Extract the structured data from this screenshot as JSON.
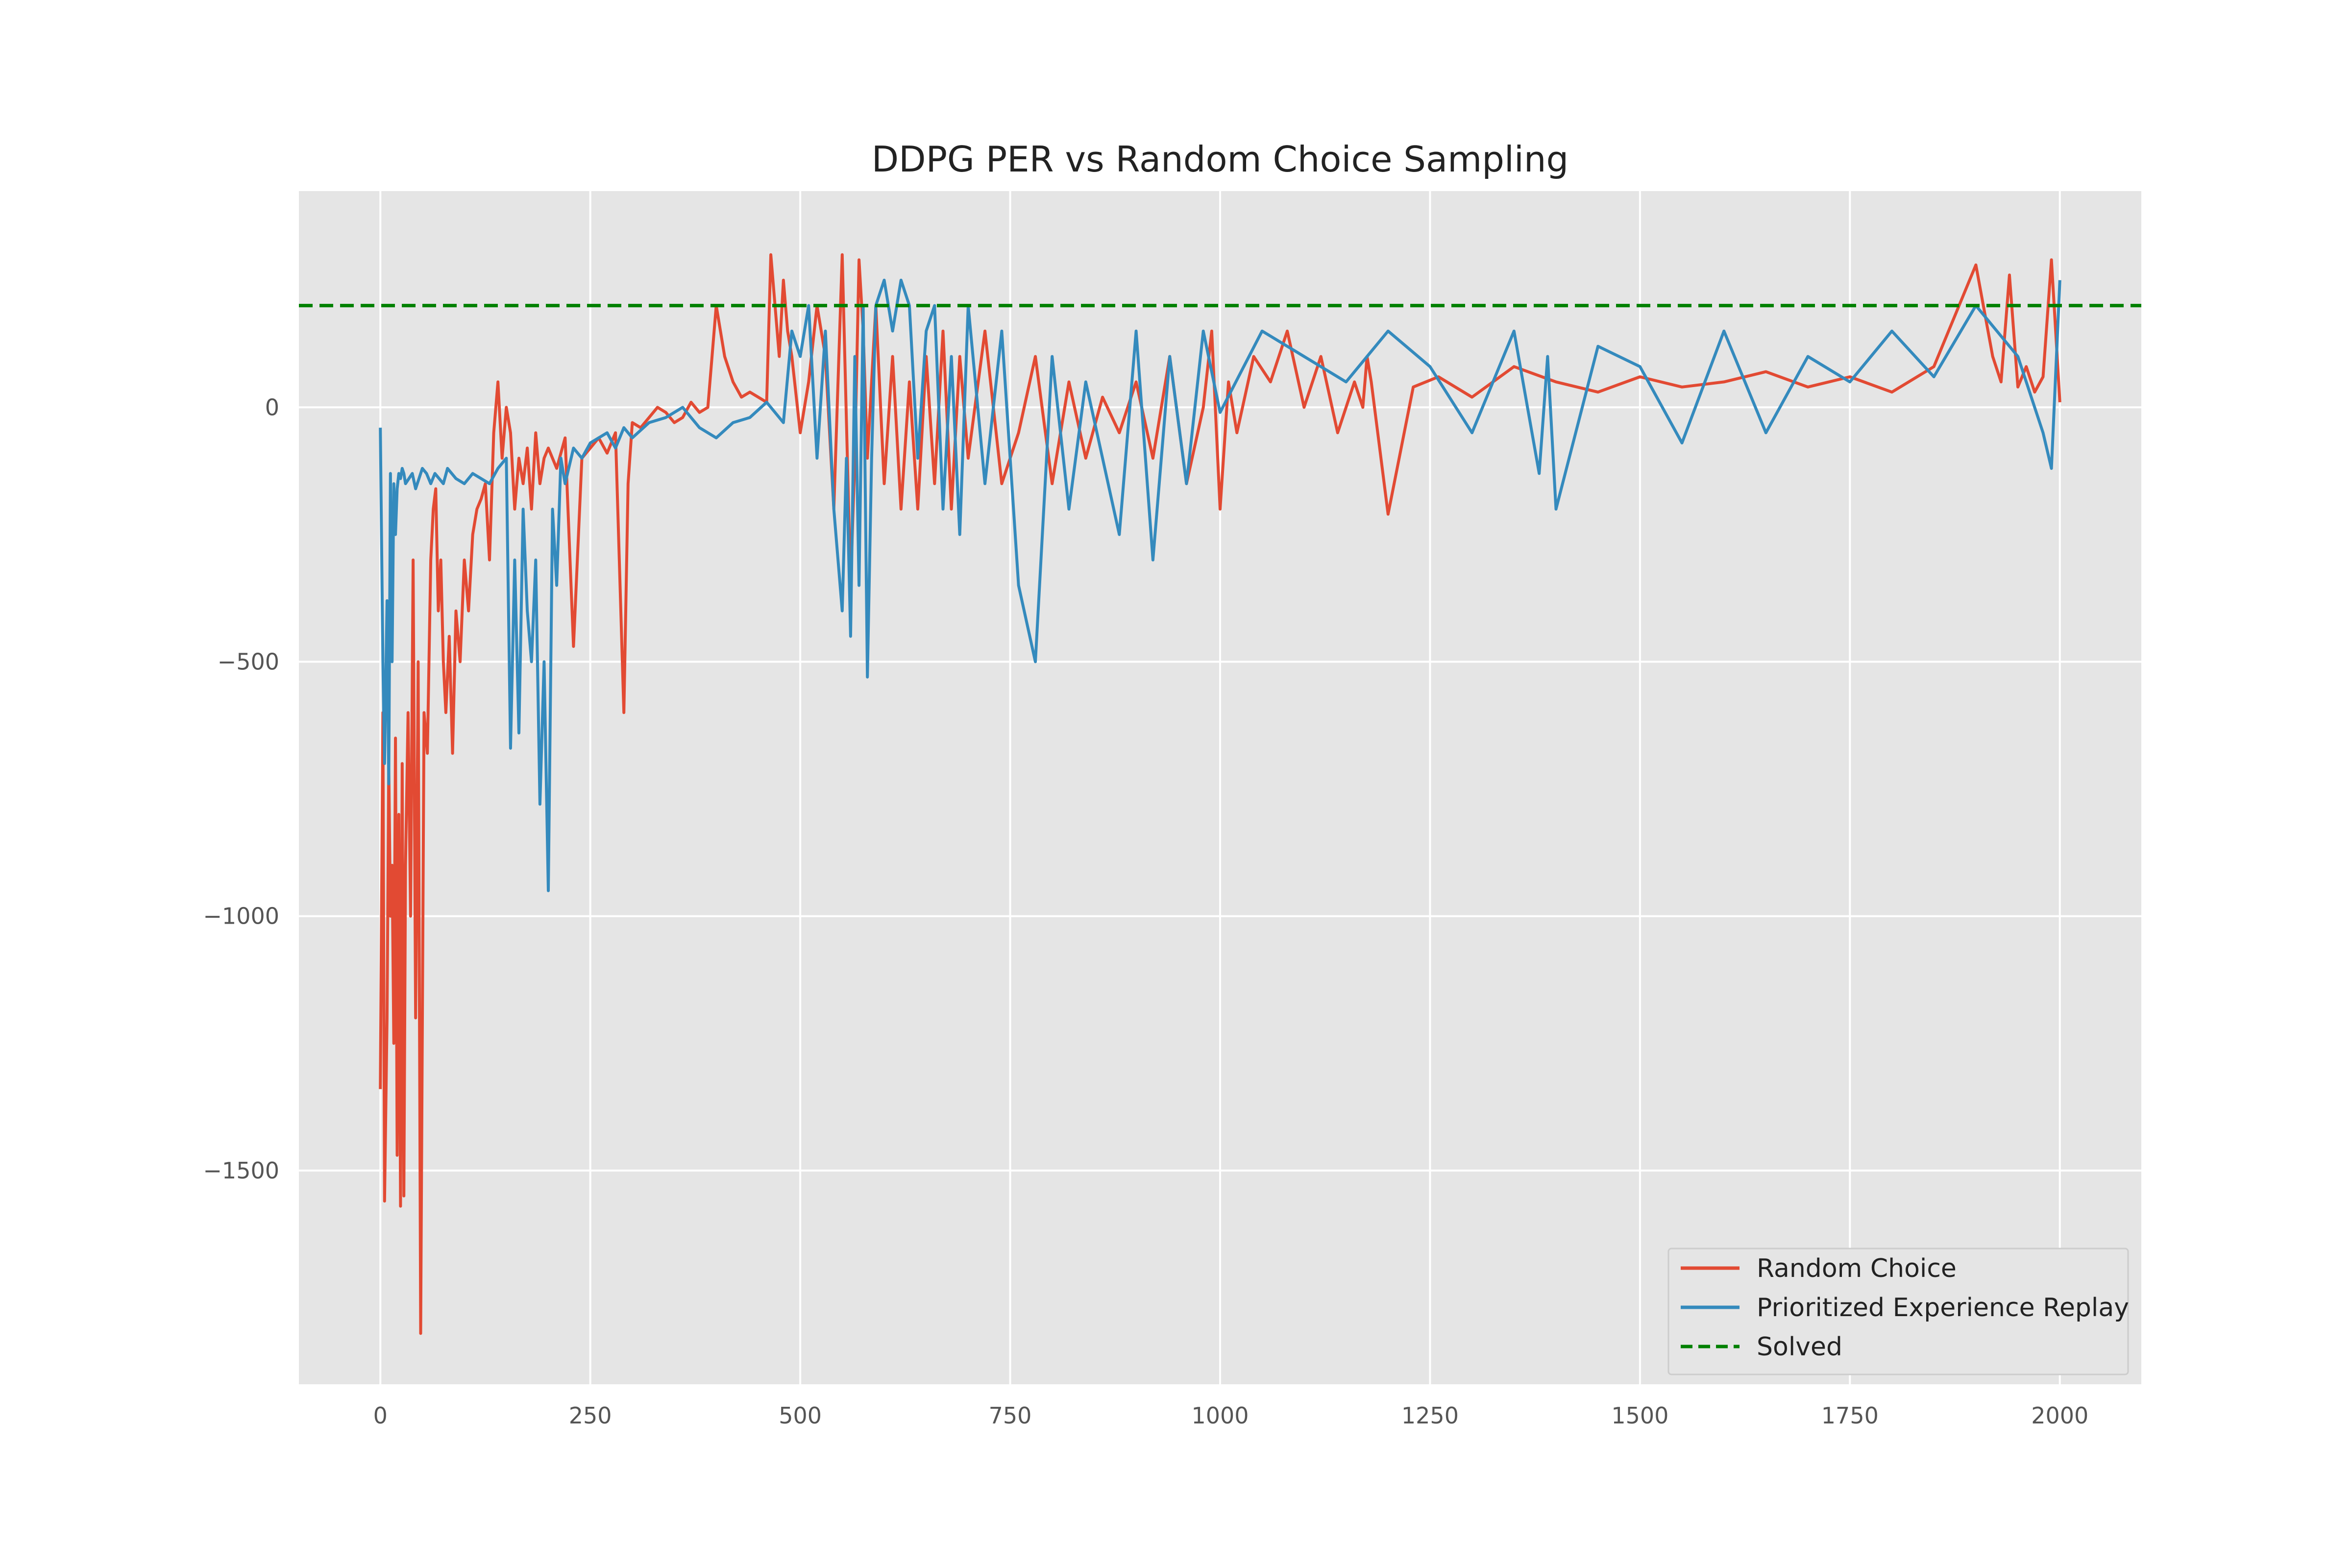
{
  "chart_data": {
    "type": "line",
    "title": "DDPG PER vs Random Choice Sampling",
    "xlabel": "",
    "ylabel": "",
    "xlim": [
      -97,
      2097
    ],
    "ylim": [
      -1920,
      425
    ],
    "x_ticks": [
      0,
      250,
      500,
      750,
      1000,
      1250,
      1500,
      1750,
      2000
    ],
    "x_tick_labels": [
      "0",
      "250",
      "500",
      "750",
      "1000",
      "1250",
      "1500",
      "1750",
      "2000"
    ],
    "y_ticks": [
      -1500,
      -1000,
      -500,
      0
    ],
    "y_tick_labels": [
      "−1500",
      "−1000",
      "−500",
      "0"
    ],
    "grid": true,
    "legend_position": "lower-right",
    "series": [
      {
        "name": "Random Choice",
        "color": "#E24A33",
        "style": "solid",
        "x": [
          0,
          3,
          5,
          8,
          10,
          12,
          14,
          16,
          18,
          20,
          22,
          24,
          26,
          28,
          30,
          33,
          36,
          39,
          42,
          45,
          48,
          52,
          56,
          60,
          63,
          66,
          69,
          72,
          75,
          78,
          82,
          86,
          90,
          95,
          100,
          105,
          110,
          115,
          120,
          125,
          130,
          135,
          140,
          145,
          150,
          155,
          160,
          165,
          170,
          175,
          180,
          185,
          190,
          195,
          200,
          210,
          220,
          230,
          240,
          250,
          260,
          270,
          280,
          290,
          295,
          300,
          310,
          320,
          330,
          340,
          350,
          360,
          370,
          380,
          390,
          400,
          405,
          410,
          420,
          430,
          440,
          450,
          460,
          465,
          470,
          475,
          480,
          485,
          490,
          500,
          510,
          520,
          530,
          540,
          550,
          560,
          565,
          570,
          575,
          580,
          585,
          590,
          600,
          610,
          620,
          630,
          640,
          650,
          660,
          670,
          680,
          690,
          700,
          720,
          740,
          760,
          780,
          800,
          820,
          840,
          860,
          880,
          900,
          920,
          940,
          960,
          980,
          990,
          1000,
          1010,
          1020,
          1040,
          1060,
          1080,
          1100,
          1120,
          1140,
          1160,
          1170,
          1175,
          1180,
          1200,
          1230,
          1260,
          1300,
          1350,
          1400,
          1450,
          1500,
          1550,
          1600,
          1650,
          1700,
          1750,
          1800,
          1850,
          1900,
          1920,
          1930,
          1940,
          1950,
          1960,
          1970,
          1980,
          1990,
          2000
        ],
        "y": [
          -1340,
          -600,
          -1560,
          -1200,
          -700,
          -1000,
          -900,
          -1250,
          -650,
          -1470,
          -800,
          -1570,
          -700,
          -1550,
          -900,
          -600,
          -1000,
          -300,
          -1200,
          -500,
          -1820,
          -600,
          -680,
          -300,
          -200,
          -160,
          -400,
          -300,
          -500,
          -600,
          -450,
          -680,
          -400,
          -500,
          -300,
          -400,
          -250,
          -200,
          -180,
          -150,
          -300,
          -50,
          50,
          -100,
          0,
          -50,
          -200,
          -100,
          -150,
          -80,
          -200,
          -50,
          -150,
          -100,
          -80,
          -120,
          -60,
          -470,
          -100,
          -80,
          -60,
          -90,
          -50,
          -600,
          -150,
          -30,
          -40,
          -20,
          0,
          -10,
          -30,
          -20,
          10,
          -10,
          0,
          200,
          150,
          100,
          50,
          20,
          30,
          20,
          10,
          300,
          200,
          100,
          250,
          150,
          100,
          -50,
          50,
          200,
          100,
          -200,
          300,
          -350,
          -100,
          290,
          150,
          -100,
          50,
          200,
          -150,
          100,
          -200,
          50,
          -200,
          100,
          -150,
          150,
          -200,
          100,
          -100,
          150,
          -150,
          -50,
          100,
          -150,
          50,
          -100,
          20,
          -50,
          50,
          -100,
          100,
          -150,
          0,
          150,
          -200,
          50,
          -50,
          100,
          50,
          150,
          0,
          100,
          -50,
          50,
          0,
          100,
          50,
          -210,
          40,
          60,
          20,
          80,
          50,
          30,
          60,
          40,
          50,
          70,
          40,
          60,
          30,
          80,
          280,
          100,
          50,
          260,
          40,
          80,
          30,
          60,
          290,
          10
        ]
      },
      {
        "name": "Prioritized Experience Replay",
        "color": "#348ABD",
        "style": "solid",
        "x": [
          0,
          3,
          5,
          8,
          10,
          12,
          14,
          16,
          18,
          20,
          22,
          24,
          26,
          28,
          30,
          34,
          38,
          42,
          46,
          50,
          55,
          60,
          65,
          70,
          75,
          80,
          90,
          100,
          110,
          120,
          130,
          140,
          150,
          155,
          160,
          165,
          170,
          175,
          180,
          185,
          190,
          195,
          200,
          205,
          210,
          215,
          220,
          230,
          240,
          250,
          260,
          270,
          280,
          290,
          300,
          320,
          340,
          360,
          380,
          400,
          420,
          440,
          460,
          480,
          490,
          500,
          510,
          520,
          530,
          540,
          550,
          555,
          560,
          565,
          570,
          575,
          580,
          585,
          590,
          600,
          610,
          620,
          630,
          640,
          650,
          660,
          670,
          680,
          690,
          700,
          720,
          740,
          760,
          780,
          800,
          820,
          840,
          860,
          880,
          900,
          920,
          940,
          960,
          980,
          1000,
          1050,
          1100,
          1150,
          1200,
          1250,
          1300,
          1350,
          1380,
          1390,
          1400,
          1450,
          1500,
          1550,
          1600,
          1650,
          1700,
          1750,
          1800,
          1850,
          1900,
          1950,
          1980,
          1990,
          2000
        ],
        "y": [
          -40,
          -500,
          -700,
          -380,
          -740,
          -130,
          -500,
          -150,
          -250,
          -160,
          -130,
          -140,
          -120,
          -130,
          -150,
          -140,
          -130,
          -160,
          -140,
          -120,
          -130,
          -150,
          -130,
          -140,
          -150,
          -120,
          -140,
          -150,
          -130,
          -140,
          -150,
          -120,
          -100,
          -670,
          -300,
          -640,
          -200,
          -400,
          -500,
          -300,
          -780,
          -500,
          -950,
          -200,
          -350,
          -100,
          -150,
          -80,
          -100,
          -70,
          -60,
          -50,
          -80,
          -40,
          -60,
          -30,
          -20,
          0,
          -40,
          -60,
          -30,
          -20,
          10,
          -30,
          150,
          100,
          200,
          -100,
          150,
          -200,
          -400,
          -100,
          -450,
          100,
          -350,
          200,
          -530,
          -100,
          200,
          250,
          150,
          250,
          200,
          -100,
          150,
          200,
          -200,
          100,
          -250,
          200,
          -150,
          150,
          -350,
          -500,
          100,
          -200,
          50,
          -100,
          -250,
          150,
          -300,
          100,
          -150,
          150,
          -10,
          150,
          100,
          50,
          150,
          80,
          -50,
          150,
          -130,
          100,
          -200,
          120,
          80,
          -70,
          150,
          -50,
          100,
          50,
          150,
          60,
          200,
          100,
          -50,
          -120,
          250
        ]
      },
      {
        "name": "Solved",
        "color": "#008000",
        "style": "dashed",
        "x": [
          -97,
          2097
        ],
        "y": [
          200,
          200
        ]
      }
    ]
  }
}
